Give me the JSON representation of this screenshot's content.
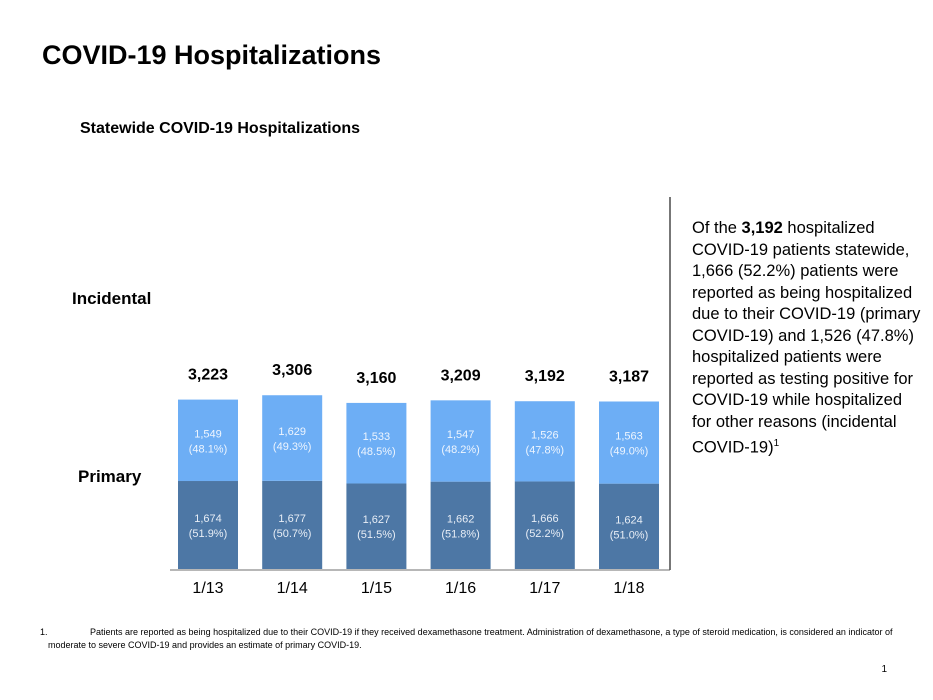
{
  "page": {
    "title": "COVID-19 Hospitalizations",
    "page_number": "1"
  },
  "side_note": {
    "prefix": "Of the ",
    "bold_value": "3,192",
    "body": " hospitalized COVID-19 patients statewide, 1,666 (52.2%) patients were reported as being hospitalized due to their COVID-19 (primary COVID-19) and 1,526 (47.8%) hospitalized patients were reported as testing positive for COVID-19 while hospitalized for other reasons (incidental COVID-19)",
    "superscript": "1"
  },
  "footnote": {
    "number": "1.",
    "text": "Patients are reported as being hospitalized due to their COVID-19 if they received dexamethasone treatment. Administration of dexamethasone, a type of steroid medication, is considered an indicator of moderate to severe COVID-19 and provides an estimate of primary COVID-19."
  },
  "chart_data": {
    "type": "bar",
    "stacked": true,
    "title": "Statewide COVID-19 Hospitalizations",
    "xlabel": "",
    "ylabel": "",
    "categories": [
      "1/13",
      "1/14",
      "1/15",
      "1/16",
      "1/17",
      "1/18"
    ],
    "totals": [
      3223,
      3306,
      3160,
      3209,
      3192,
      3187
    ],
    "total_labels": [
      "3,223",
      "3,306",
      "3,160",
      "3,209",
      "3,192",
      "3,187"
    ],
    "series": [
      {
        "name": "Primary",
        "color": "#4d77a5",
        "values": [
          1674,
          1677,
          1627,
          1662,
          1666,
          1624
        ],
        "labels": [
          "1,674",
          "1,677",
          "1,627",
          "1,662",
          "1,666",
          "1,624"
        ],
        "percents": [
          "(51.9%)",
          "(50.7%)",
          "(51.5%)",
          "(51.8%)",
          "(52.2%)",
          "(51.0%)"
        ]
      },
      {
        "name": "Incidental",
        "color": "#6daef5",
        "values": [
          1549,
          1629,
          1533,
          1547,
          1526,
          1563
        ],
        "labels": [
          "1,549",
          "1,629",
          "1,533",
          "1,547",
          "1,526",
          "1,563"
        ],
        "percents": [
          "(48.1%)",
          "(49.3%)",
          "(48.5%)",
          "(48.2%)",
          "(47.8%)",
          "(49.0%)"
        ]
      }
    ],
    "legend": "left",
    "grid": false
  }
}
